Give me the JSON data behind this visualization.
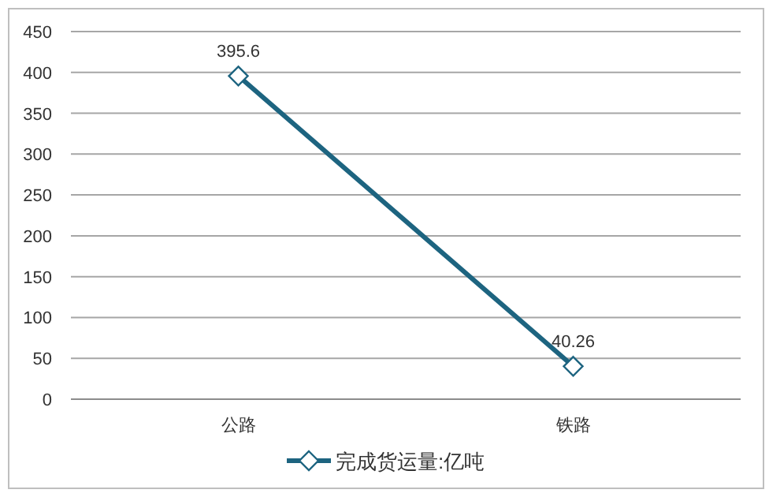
{
  "chart_data": {
    "type": "line",
    "categories": [
      "公路",
      "铁路"
    ],
    "series": [
      {
        "name": "完成货运量:亿吨",
        "color": "#1d6480",
        "values": [
          395.6,
          40.26
        ]
      }
    ],
    "ylim": [
      0,
      450
    ],
    "yticks": [
      0,
      50,
      100,
      150,
      200,
      250,
      300,
      350,
      400,
      450
    ],
    "grid": "y",
    "legend": "bottom",
    "marker": "diamond",
    "data_labels": true
  }
}
